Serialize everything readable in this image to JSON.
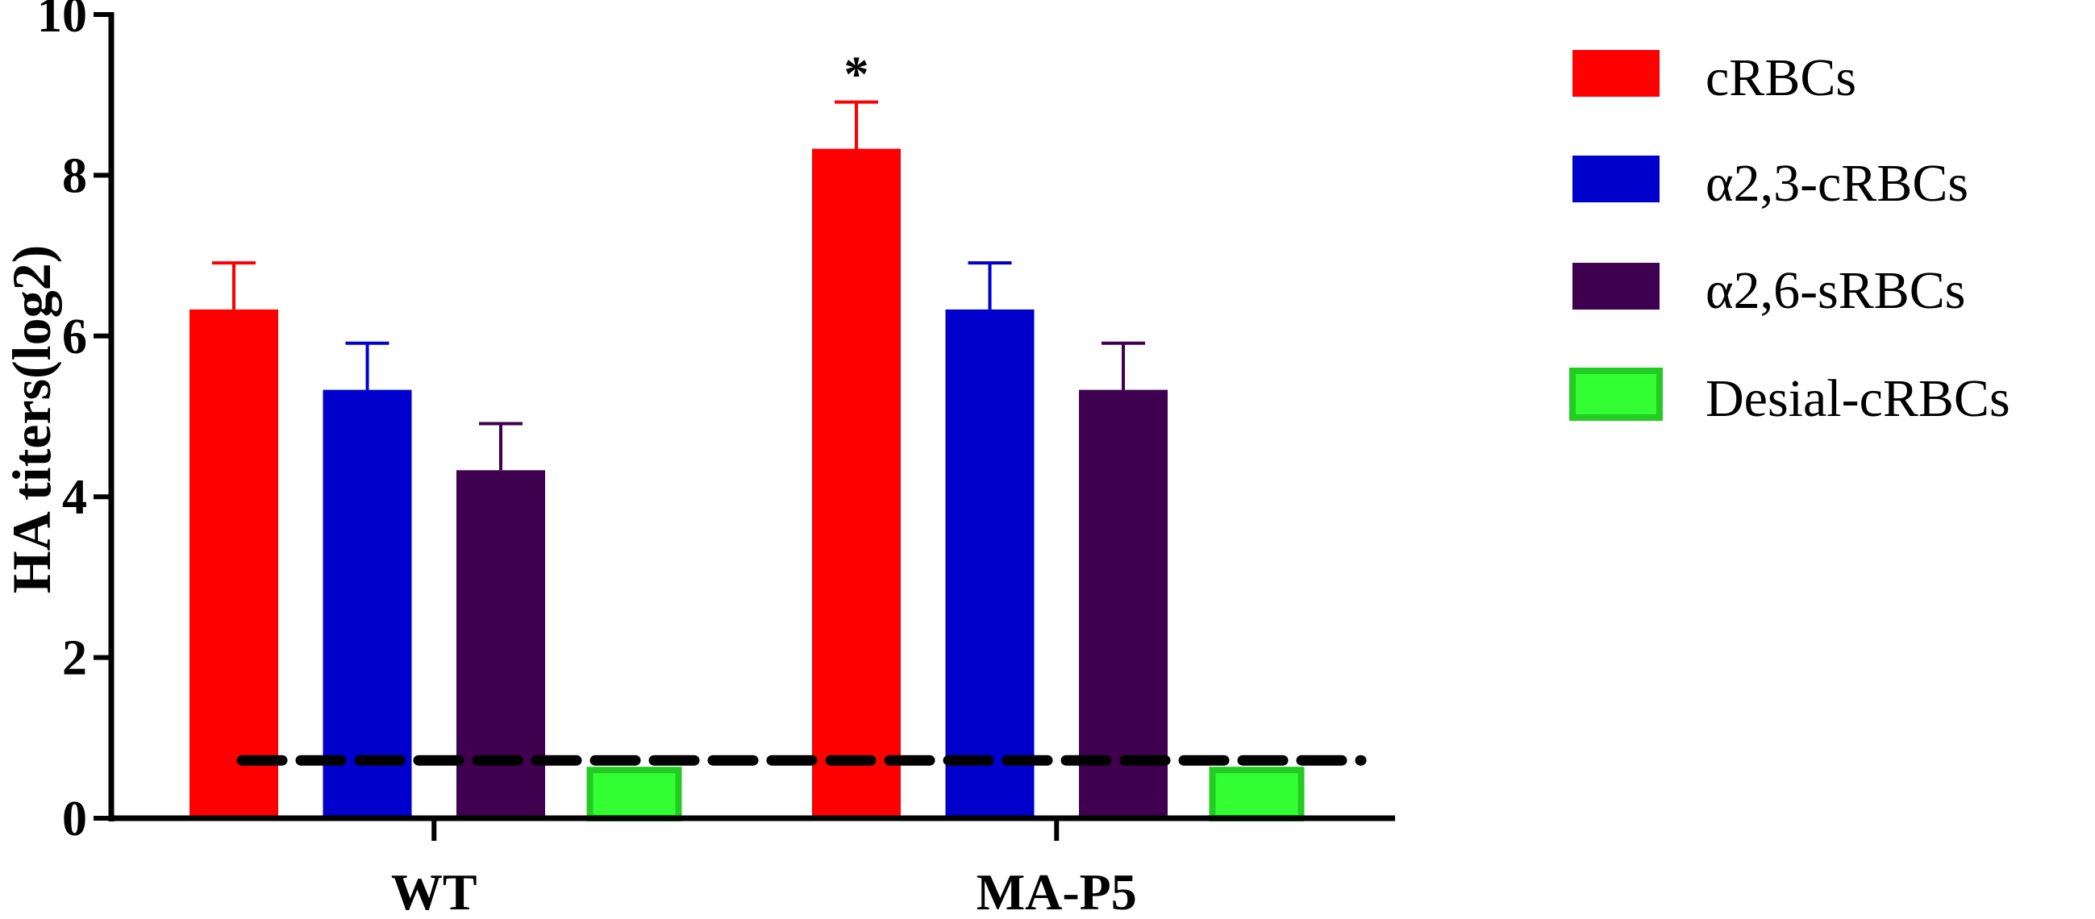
{
  "chart_data": {
    "type": "bar",
    "title": "",
    "xlabel": "",
    "ylabel": "HA titers(log2)",
    "ylim": [
      0,
      10
    ],
    "yticks": [
      0,
      2,
      4,
      6,
      8,
      10
    ],
    "categories": [
      "WT",
      "MA-P5"
    ],
    "series": [
      {
        "name": "cRBCs",
        "color": "#ff0000",
        "values": [
          6.33,
          8.33
        ],
        "errors": [
          0.58,
          0.58
        ]
      },
      {
        "name": "α2,3-cRBCs",
        "color": "#0000cc",
        "values": [
          5.33,
          6.33
        ],
        "errors": [
          0.58,
          0.58
        ]
      },
      {
        "name": "α2,6-sRBCs",
        "color": "#400050",
        "values": [
          4.33,
          5.33
        ],
        "errors": [
          0.58,
          0.58
        ]
      },
      {
        "name": "Desial-cRBCs",
        "color": "#33ff33",
        "values": [
          0.6,
          0.6
        ],
        "errors": [
          0,
          0
        ]
      }
    ],
    "reference_line": {
      "value": 0.72,
      "style": "dashed"
    },
    "annotations": [
      {
        "text": "*",
        "category": "MA-P5",
        "series": "cRBCs"
      }
    ],
    "legend_position": "right",
    "grid": false
  }
}
